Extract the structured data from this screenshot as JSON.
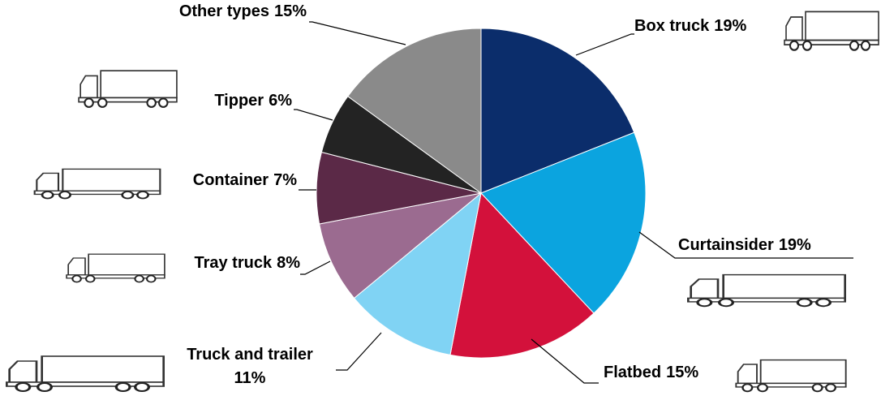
{
  "chart_data": {
    "type": "pie",
    "categories": [
      "Box truck",
      "Curtainsider",
      "Flatbed",
      "Truck and trailer",
      "Tray truck",
      "Container",
      "Tipper",
      "Other types"
    ],
    "values": [
      19,
      19,
      15,
      11,
      8,
      7,
      6,
      15
    ],
    "value_labels": [
      "19%",
      "19%",
      "15%",
      "11%",
      "8%",
      "7%",
      "6%",
      "15%"
    ],
    "colors": [
      "#0b2d6b",
      "#0ba4df",
      "#d3113b",
      "#80d3f4",
      "#9b6b90",
      "#5b2947",
      "#232323",
      "#8a8a8a"
    ]
  }
}
